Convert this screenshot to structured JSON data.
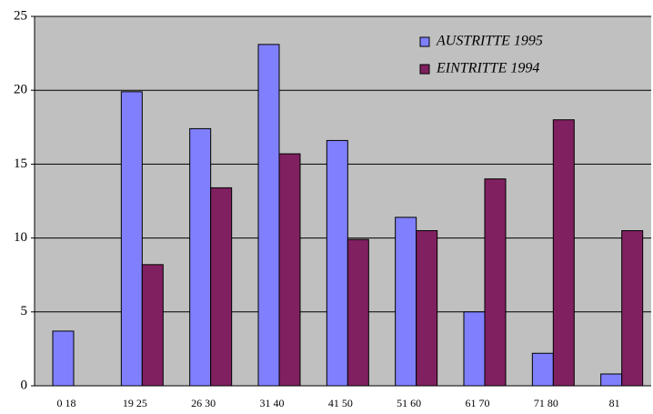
{
  "chart_data": {
    "type": "bar",
    "categories": [
      "0 18",
      "19 25",
      "26 30",
      "31 40",
      "41 50",
      "51 60",
      "61 70",
      "71 80",
      "81"
    ],
    "series": [
      {
        "name": "AUSTRITTE 1995",
        "color": "#8080ff",
        "values": [
          3.7,
          19.9,
          17.4,
          23.1,
          16.6,
          11.4,
          5.0,
          2.2,
          0.8
        ]
      },
      {
        "name": "EINTRITTE 1994",
        "color": "#802060",
        "values": [
          0,
          8.2,
          13.4,
          15.7,
          9.9,
          10.5,
          14.0,
          18.0,
          10.5
        ]
      }
    ],
    "ylim": [
      0,
      25
    ],
    "yticks": [
      0,
      5,
      10,
      15,
      20,
      25
    ],
    "grid": true,
    "legend": "top-right"
  }
}
